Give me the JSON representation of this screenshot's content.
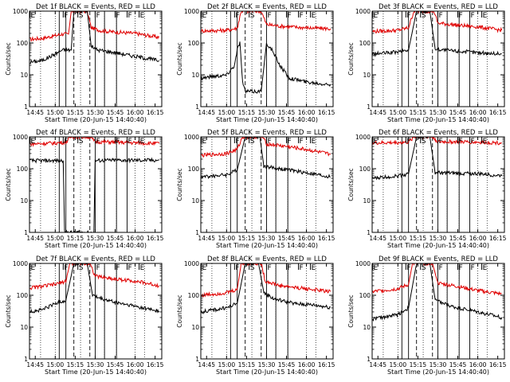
{
  "colors": {
    "events": "#000000",
    "lld": "#e00000",
    "background": "#ffffff"
  },
  "chart_data": {
    "type": "line",
    "y_scale": "log",
    "ylim": [
      1,
      1000
    ],
    "y_ticks": [
      "1",
      "10",
      "100",
      "1000"
    ],
    "x_ticks": [
      "14:45",
      "15:00",
      "15:15",
      "15:30",
      "15:45",
      "16:00",
      "16:15"
    ],
    "x_tick_times": [
      "14:45",
      "15:00",
      "15:15",
      "15:30",
      "15:45",
      "16:00",
      "16:15"
    ],
    "xlim": [
      "14:40:40",
      "16:20:00"
    ],
    "xlabel": "Start Time (20-Jun-15 14:40:40)",
    "ylabel": "Counts/sec",
    "dotted_lines": [
      "14:49",
      "15:00",
      "15:19",
      "15:37",
      "15:46",
      "16:00",
      "16:07"
    ],
    "markers": [
      {
        "label": "E",
        "time": "14:41"
      },
      {
        "label": "F",
        "time": "15:06"
      },
      {
        "label": "S",
        "time": "15:17"
      },
      {
        "label": "F",
        "time": "15:30"
      },
      {
        "label": "F",
        "time": "15:45"
      },
      {
        "label": "F",
        "time": "15:54"
      },
      {
        "label": "E",
        "time": "16:03"
      }
    ],
    "panels": [
      {
        "title": "Det 1f BLACK = Events, RED = LLD",
        "solid_lines": [
          "15:03",
          "15:08",
          "15:30",
          "15:37",
          "15:46"
        ],
        "dashed_lines": [
          "15:14",
          "15:26"
        ],
        "lld": [
          [
            "14:41",
            130
          ],
          [
            "14:50",
            140
          ],
          [
            "15:00",
            170
          ],
          [
            "15:05",
            190
          ],
          [
            "15:10",
            190
          ],
          [
            "15:12",
            1000
          ],
          [
            "15:24",
            1000
          ],
          [
            "15:27",
            300
          ],
          [
            "15:35",
            240
          ],
          [
            "15:45",
            220
          ],
          [
            "16:00",
            200
          ],
          [
            "16:18",
            150
          ]
        ],
        "events": [
          [
            "14:41",
            25
          ],
          [
            "14:50",
            28
          ],
          [
            "15:00",
            45
          ],
          [
            "15:05",
            60
          ],
          [
            "15:12",
            60
          ],
          [
            "15:14",
            1000
          ],
          [
            "15:24",
            1000
          ],
          [
            "15:27",
            80
          ],
          [
            "15:32",
            60
          ],
          [
            "15:45",
            50
          ],
          [
            "16:00",
            38
          ],
          [
            "16:18",
            28
          ]
        ]
      },
      {
        "title": "Det 2f BLACK = Events, RED = LLD",
        "solid_lines": [
          "15:03",
          "15:08",
          "15:30",
          "15:37",
          "15:46"
        ],
        "dashed_lines": [
          "15:14",
          "15:26"
        ],
        "lld": [
          [
            "14:41",
            240
          ],
          [
            "15:00",
            250
          ],
          [
            "15:08",
            290
          ],
          [
            "15:11",
            1000
          ],
          [
            "15:26",
            1000
          ],
          [
            "15:30",
            380
          ],
          [
            "15:40",
            340
          ],
          [
            "16:00",
            300
          ],
          [
            "16:18",
            280
          ]
        ],
        "events": [
          [
            "14:41",
            8
          ],
          [
            "14:50",
            9
          ],
          [
            "15:00",
            10
          ],
          [
            "15:06",
            20
          ],
          [
            "15:08",
            60
          ],
          [
            "15:10",
            110
          ],
          [
            "15:12",
            6
          ],
          [
            "15:14",
            3
          ],
          [
            "15:26",
            3
          ],
          [
            "15:30",
            100
          ],
          [
            "15:34",
            60
          ],
          [
            "15:40",
            20
          ],
          [
            "15:47",
            8
          ],
          [
            "16:00",
            6
          ],
          [
            "16:18",
            5
          ]
        ]
      },
      {
        "title": "Det 3f BLACK = Events, RED = LLD",
        "solid_lines": [
          "15:03",
          "15:08",
          "15:30",
          "15:37",
          "15:46",
          "15:54"
        ],
        "dashed_lines": [
          "15:14",
          "15:26"
        ],
        "lld": [
          [
            "14:41",
            230
          ],
          [
            "15:00",
            250
          ],
          [
            "15:08",
            300
          ],
          [
            "15:12",
            1000
          ],
          [
            "15:27",
            1000
          ],
          [
            "15:30",
            420
          ],
          [
            "15:45",
            360
          ],
          [
            "16:00",
            320
          ],
          [
            "16:18",
            250
          ]
        ],
        "events": [
          [
            "14:41",
            45
          ],
          [
            "14:50",
            48
          ],
          [
            "15:00",
            52
          ],
          [
            "15:08",
            60
          ],
          [
            "15:14",
            1000
          ],
          [
            "15:24",
            1000
          ],
          [
            "15:28",
            65
          ],
          [
            "15:35",
            60
          ],
          [
            "15:45",
            55
          ],
          [
            "16:00",
            50
          ],
          [
            "16:18",
            45
          ]
        ]
      },
      {
        "title": "Det 4f BLACK = Events, RED = LLD",
        "solid_lines": [
          "15:03",
          "15:08",
          "15:30",
          "15:37",
          "15:46",
          "15:54"
        ],
        "dashed_lines": [
          "15:14",
          "15:26"
        ],
        "lld": [
          [
            "14:41",
            600
          ],
          [
            "15:00",
            640
          ],
          [
            "15:08",
            680
          ],
          [
            "15:12",
            1000
          ],
          [
            "15:26",
            1000
          ],
          [
            "15:30",
            700
          ],
          [
            "15:45",
            680
          ],
          [
            "16:00",
            650
          ],
          [
            "16:18",
            620
          ]
        ],
        "events": [
          [
            "14:41",
            180
          ],
          [
            "15:00",
            180
          ],
          [
            "15:06",
            180
          ],
          [
            "15:07",
            1
          ],
          [
            "15:29",
            1
          ],
          [
            "15:30",
            180
          ],
          [
            "15:45",
            185
          ],
          [
            "16:00",
            185
          ],
          [
            "16:18",
            185
          ]
        ]
      },
      {
        "title": "Det 5f BLACK = Events, RED = LLD",
        "solid_lines": [
          "15:03",
          "15:08",
          "15:30",
          "15:37",
          "15:46"
        ],
        "dashed_lines": [
          "15:14",
          "15:26"
        ],
        "lld": [
          [
            "14:41",
            260
          ],
          [
            "15:00",
            300
          ],
          [
            "15:08",
            400
          ],
          [
            "15:12",
            1000
          ],
          [
            "15:27",
            1000
          ],
          [
            "15:30",
            600
          ],
          [
            "15:45",
            500
          ],
          [
            "16:00",
            400
          ],
          [
            "16:18",
            280
          ]
        ],
        "events": [
          [
            "14:41",
            55
          ],
          [
            "15:00",
            65
          ],
          [
            "15:08",
            90
          ],
          [
            "15:14",
            1000
          ],
          [
            "15:25",
            1000
          ],
          [
            "15:28",
            120
          ],
          [
            "15:40",
            100
          ],
          [
            "16:00",
            75
          ],
          [
            "16:18",
            55
          ]
        ]
      },
      {
        "title": "Det 6f BLACK = Events, RED = LLD",
        "solid_lines": [
          "15:03",
          "15:08",
          "15:30",
          "15:37",
          "15:46",
          "15:54"
        ],
        "dashed_lines": [
          "15:14",
          "15:26"
        ],
        "lld": [
          [
            "14:41",
            640
          ],
          [
            "15:00",
            660
          ],
          [
            "15:08",
            680
          ],
          [
            "15:12",
            1000
          ],
          [
            "15:26",
            1000
          ],
          [
            "15:30",
            700
          ],
          [
            "15:45",
            700
          ],
          [
            "16:00",
            680
          ],
          [
            "16:18",
            650
          ]
        ],
        "events": [
          [
            "14:41",
            50
          ],
          [
            "15:00",
            60
          ],
          [
            "15:08",
            70
          ],
          [
            "15:14",
            1000
          ],
          [
            "15:24",
            1000
          ],
          [
            "15:28",
            75
          ],
          [
            "15:40",
            72
          ],
          [
            "16:00",
            70
          ],
          [
            "16:18",
            60
          ]
        ]
      },
      {
        "title": "Det 7f BLACK = Events, RED = LLD",
        "solid_lines": [
          "15:03",
          "15:08",
          "15:30",
          "15:37",
          "15:46"
        ],
        "dashed_lines": [
          "15:14",
          "15:26"
        ],
        "lld": [
          [
            "14:41",
            170
          ],
          [
            "14:50",
            190
          ],
          [
            "15:00",
            220
          ],
          [
            "15:08",
            280
          ],
          [
            "15:11",
            1000
          ],
          [
            "15:26",
            1000
          ],
          [
            "15:30",
            400
          ],
          [
            "15:45",
            320
          ],
          [
            "16:00",
            280
          ],
          [
            "16:18",
            200
          ]
        ],
        "events": [
          [
            "14:41",
            30
          ],
          [
            "14:50",
            35
          ],
          [
            "15:00",
            55
          ],
          [
            "15:08",
            70
          ],
          [
            "15:14",
            1000
          ],
          [
            "15:24",
            1000
          ],
          [
            "15:28",
            100
          ],
          [
            "15:33",
            80
          ],
          [
            "15:45",
            60
          ],
          [
            "16:00",
            45
          ],
          [
            "16:18",
            32
          ]
        ]
      },
      {
        "title": "Det 8f BLACK = Events, RED = LLD",
        "solid_lines": [
          "15:03",
          "15:08",
          "15:30",
          "15:37",
          "15:46"
        ],
        "dashed_lines": [
          "15:14",
          "15:26"
        ],
        "lld": [
          [
            "14:41",
            100
          ],
          [
            "15:00",
            120
          ],
          [
            "15:08",
            150
          ],
          [
            "15:11",
            1000
          ],
          [
            "15:26",
            1000
          ],
          [
            "15:29",
            280
          ],
          [
            "15:40",
            200
          ],
          [
            "16:00",
            160
          ],
          [
            "16:18",
            130
          ]
        ],
        "events": [
          [
            "14:41",
            30
          ],
          [
            "15:00",
            40
          ],
          [
            "15:08",
            55
          ],
          [
            "15:14",
            1000
          ],
          [
            "15:24",
            1000
          ],
          [
            "15:28",
            120
          ],
          [
            "15:35",
            80
          ],
          [
            "15:50",
            55
          ],
          [
            "16:05",
            50
          ],
          [
            "16:18",
            42
          ]
        ]
      },
      {
        "title": "Det 9f BLACK = Events, RED = LLD",
        "solid_lines": [
          "15:03",
          "15:08",
          "15:30",
          "15:37",
          "15:46",
          "15:54"
        ],
        "dashed_lines": [
          "15:14",
          "15:26"
        ],
        "lld": [
          [
            "14:41",
            130
          ],
          [
            "15:00",
            160
          ],
          [
            "15:08",
            220
          ],
          [
            "15:11",
            1000
          ],
          [
            "15:26",
            1000
          ],
          [
            "15:30",
            240
          ],
          [
            "15:45",
            190
          ],
          [
            "16:00",
            140
          ],
          [
            "16:18",
            110
          ]
        ],
        "events": [
          [
            "14:41",
            18
          ],
          [
            "15:00",
            25
          ],
          [
            "15:08",
            40
          ],
          [
            "15:14",
            1000
          ],
          [
            "15:24",
            1000
          ],
          [
            "15:28",
            70
          ],
          [
            "15:40",
            45
          ],
          [
            "16:00",
            30
          ],
          [
            "16:18",
            20
          ]
        ]
      }
    ]
  }
}
